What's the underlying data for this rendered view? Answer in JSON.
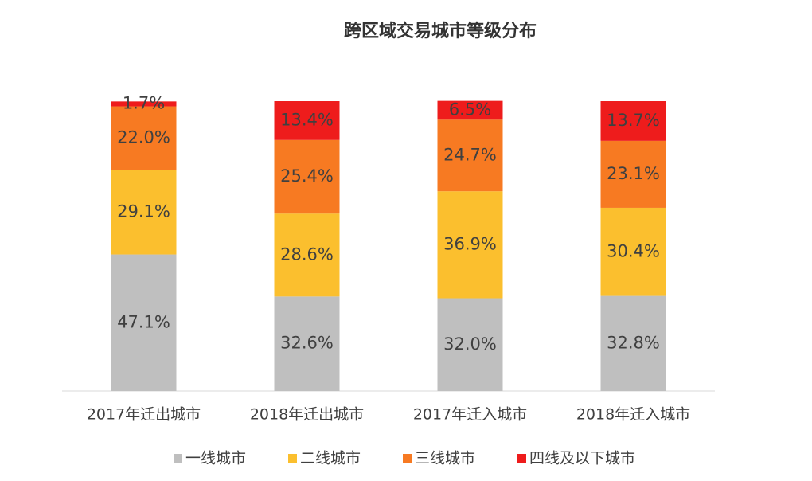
{
  "chart_data": {
    "type": "stacked-bar",
    "title": "跨区域交易城市等级分布",
    "categories": [
      "2017年迁出城市",
      "2018年迁出城市",
      "2017年迁入城市",
      "2018年迁入城市"
    ],
    "series": [
      {
        "name": "一线城市",
        "color": "#bfbfbf",
        "values": [
          47.1,
          32.6,
          32.0,
          32.8
        ],
        "value_labels": [
          "47.1%",
          "32.6%",
          "32.0%",
          "32.8%"
        ]
      },
      {
        "name": "二线城市",
        "color": "#fbbf2e",
        "values": [
          29.1,
          28.6,
          36.9,
          30.4
        ],
        "value_labels": [
          "29.1%",
          "28.6%",
          "36.9%",
          "30.4%"
        ]
      },
      {
        "name": "三线城市",
        "color": "#f77a22",
        "values": [
          22.0,
          25.4,
          24.7,
          23.1
        ],
        "value_labels": [
          "22.0%",
          "25.4%",
          "24.7%",
          "23.1%"
        ]
      },
      {
        "name": "四线及以下城市",
        "color": "#ee1c1c",
        "values": [
          1.7,
          13.4,
          6.5,
          13.7
        ],
        "value_labels": [
          "1.7%",
          "13.4%",
          "6.5%",
          "13.7%"
        ]
      }
    ],
    "ylim": [
      0,
      100
    ]
  }
}
